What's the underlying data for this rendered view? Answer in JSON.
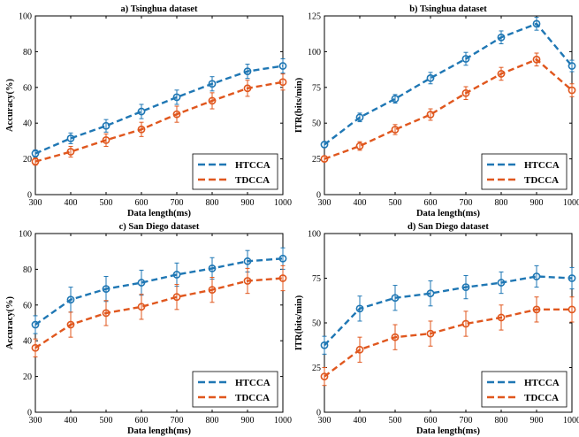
{
  "colors": {
    "htcca": "#1f77b4",
    "tdcca": "#e0571e"
  },
  "chart_data": [
    {
      "type": "line",
      "title": "a) Tsinghua dataset",
      "xlabel": "Data length(ms)",
      "ylabel": "Accuracy(%)",
      "x": [
        300,
        400,
        500,
        600,
        700,
        800,
        900,
        1000
      ],
      "xlim": [
        300,
        1000
      ],
      "ylim": [
        0,
        100
      ],
      "yticks": [
        0,
        20,
        40,
        60,
        80,
        100
      ],
      "grid": false,
      "legend": "bottom-right",
      "series": [
        {
          "name": "HTCCA",
          "values": [
            23,
            31.5,
            38.5,
            46.5,
            54.5,
            62,
            69,
            72
          ],
          "errors": [
            2,
            3,
            3.5,
            4,
            4,
            4,
            4,
            4
          ]
        },
        {
          "name": "TDCCA",
          "values": [
            18.5,
            24,
            30.5,
            36.5,
            45,
            52.5,
            59.5,
            63
          ],
          "errors": [
            2,
            3,
            3.5,
            4,
            4.5,
            4.5,
            4.5,
            4.5
          ]
        }
      ]
    },
    {
      "type": "line",
      "title": "b) Tsinghua dataset",
      "xlabel": "Data length(ms)",
      "ylabel": "ITR(bits/min)",
      "x": [
        300,
        400,
        500,
        600,
        700,
        800,
        900,
        1000
      ],
      "xlim": [
        300,
        1000
      ],
      "ylim": [
        0,
        125
      ],
      "yticks": [
        0,
        25,
        50,
        75,
        100,
        125
      ],
      "grid": false,
      "legend": "bottom-right",
      "series": [
        {
          "name": "HTCCA",
          "values": [
            35,
            54,
            67,
            81.5,
            95,
            110,
            119.5,
            90
          ],
          "errors": [
            2,
            3,
            3,
            4,
            4.5,
            4.5,
            4.5,
            4
          ]
        },
        {
          "name": "TDCCA",
          "values": [
            25,
            34,
            45.5,
            56,
            71,
            84.5,
            94.5,
            73
          ],
          "errors": [
            2,
            3,
            3.5,
            4,
            4.5,
            4.5,
            4.5,
            4.5
          ]
        }
      ]
    },
    {
      "type": "line",
      "title": "c) San Diego dataset",
      "xlabel": "Data length(ms)",
      "ylabel": "Accuracy(%)",
      "x": [
        300,
        400,
        500,
        600,
        700,
        800,
        900,
        1000
      ],
      "xlim": [
        300,
        1000
      ],
      "ylim": [
        0,
        100
      ],
      "yticks": [
        0,
        20,
        40,
        60,
        80,
        100
      ],
      "grid": false,
      "legend": "bottom-right",
      "series": [
        {
          "name": "HTCCA",
          "values": [
            49,
            63,
            69,
            72.5,
            77,
            80.5,
            84.5,
            86
          ],
          "errors": [
            5,
            7,
            7,
            7,
            6.5,
            6,
            6,
            6
          ]
        },
        {
          "name": "TDCCA",
          "values": [
            36,
            49,
            55.5,
            59,
            64.5,
            68.5,
            73.5,
            75
          ],
          "errors": [
            5,
            7,
            7,
            7,
            7,
            7,
            7,
            7
          ]
        }
      ]
    },
    {
      "type": "line",
      "title": "d) San Diego dataset",
      "xlabel": "Data length(ms)",
      "ylabel": "ITR(bits/min)",
      "x": [
        300,
        400,
        500,
        600,
        700,
        800,
        900,
        1000
      ],
      "xlim": [
        300,
        1000
      ],
      "ylim": [
        0,
        100
      ],
      "yticks": [
        0,
        25,
        50,
        75,
        100
      ],
      "grid": false,
      "legend": "bottom-right",
      "series": [
        {
          "name": "HTCCA",
          "values": [
            37.5,
            58,
            64,
            66.5,
            70,
            72.5,
            76,
            75
          ],
          "errors": [
            5,
            7,
            7,
            7,
            6.5,
            6,
            6,
            6
          ]
        },
        {
          "name": "TDCCA",
          "values": [
            20,
            35,
            42,
            44,
            49.5,
            53,
            57.5,
            57.5
          ],
          "errors": [
            5,
            7,
            7,
            7,
            7,
            7,
            7,
            7
          ]
        }
      ]
    }
  ]
}
